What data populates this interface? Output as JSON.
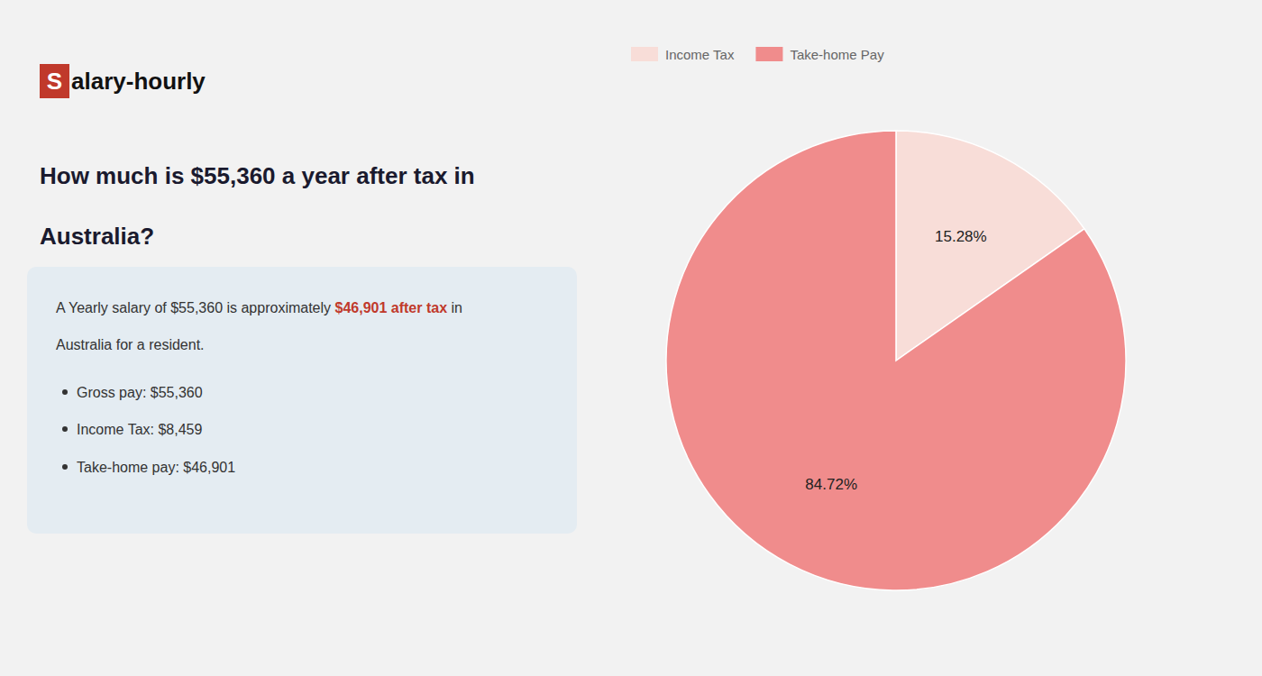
{
  "page": {
    "logo": [
      "S",
      "alary-hourly"
    ],
    "heading": [
      "How much is $55,360 a year after tax in",
      "Australia?"
    ],
    "box_line1": [
      "A Yearly salary of $55,360 is approximately ",
      "$46,901 after tax",
      " in"
    ],
    "box_line2": "Australia for a resident.",
    "bullets": [
      "Gross pay: $55,360",
      "Income Tax: $8,459",
      "Take-home pay: $46,901"
    ],
    "accent_color": "#c0392b"
  },
  "chart_data": {
    "type": "pie",
    "categories": [
      "Income Tax",
      "Take-home Pay"
    ],
    "values": [
      15.28,
      84.72
    ],
    "value_labels": [
      "15.28%",
      "84.72%"
    ],
    "colors": [
      "#f8ddd8",
      "#f08c8c"
    ],
    "data_labels": true,
    "legend": "upper left"
  }
}
